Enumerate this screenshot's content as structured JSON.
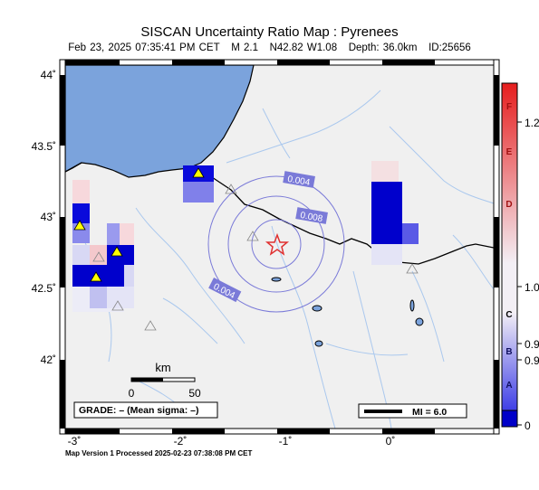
{
  "title": "SISCAN Uncertainty Ratio Map : Pyrenees",
  "subtitle": {
    "datetime": "Feb 23, 2025 07:35:41 PM CET",
    "magnitude": "M 2.1",
    "location": "N42.82 W1.08",
    "depth": "Depth: 36.0km",
    "event_id": "ID:25656"
  },
  "map": {
    "y_axis_labels": [
      "44˚",
      "43.5˚",
      "43˚",
      "42.5˚",
      "42˚"
    ],
    "x_axis_labels": [
      "-3˚",
      "-2˚",
      "-1˚",
      "0˚"
    ],
    "contour_labels": [
      "0.004",
      "0.008",
      "0.004"
    ],
    "scale_bar": {
      "unit": "km",
      "labels": [
        "0",
        "50"
      ]
    },
    "grade_box": "GRADE: – (Mean sigma: –)",
    "mi_legend": "MI = 6.0",
    "colors": {
      "sea": "#7ba3dc",
      "land": "#f0f0f0",
      "epicenter": "#e03030",
      "contour": "#7a7ad8",
      "river": "#aac8ee"
    }
  },
  "colorbar": {
    "letters": [
      "F",
      "E",
      "D",
      "C",
      "B",
      "A"
    ],
    "values": [
      "1.2",
      "1.0",
      "0.9",
      "0.9",
      "0"
    ],
    "colors": {
      "top": "#e61e1e",
      "middle": "#f3eff5",
      "bottom": "#0000c8"
    }
  },
  "footer": "Map Version 1 Processed 2025-02-23 07:38:08 PM CET"
}
